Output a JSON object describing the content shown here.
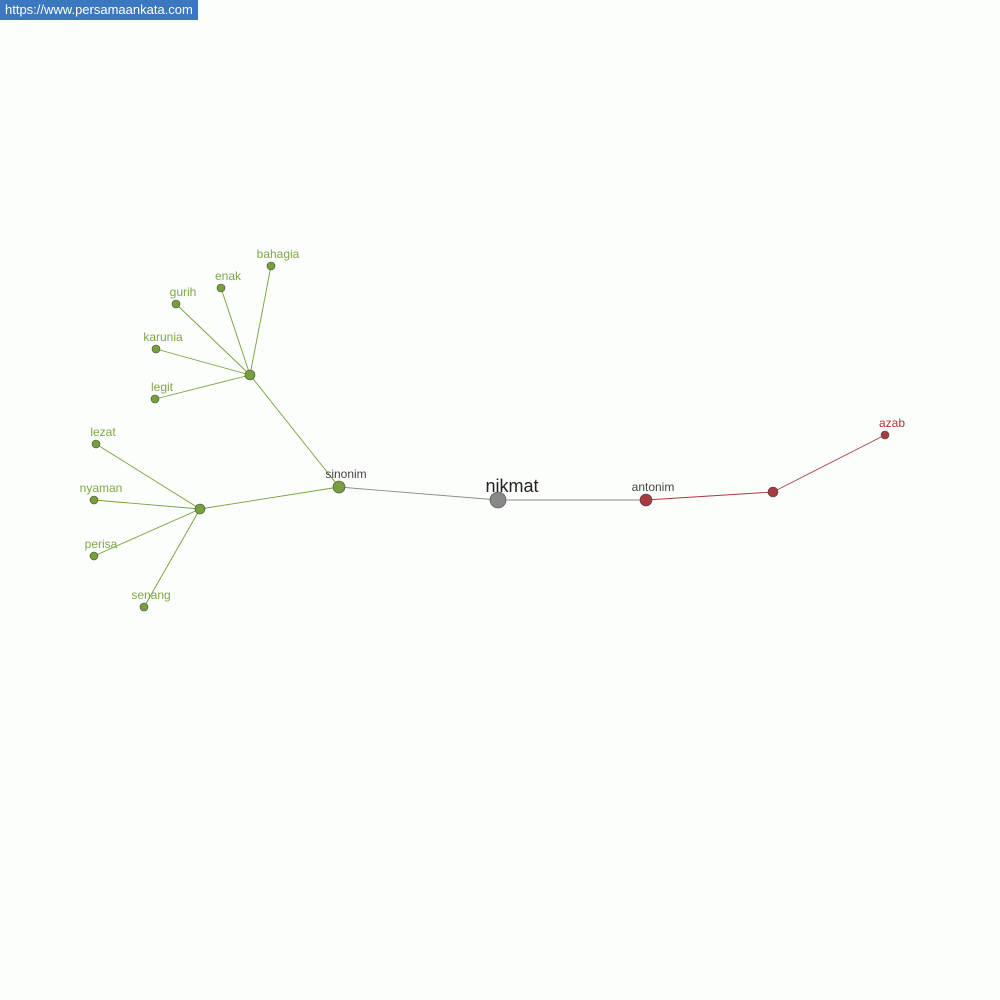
{
  "site_link": "https://www.persamaankata.com",
  "colors": {
    "synonym": "#76a03a",
    "synonym_label": "#7fa546",
    "antonym": "#a53a40",
    "antonym_label": "#b5343c",
    "center": "#888888",
    "hub_label": "#444444",
    "center_label": "#222222",
    "center_edge": "#888888"
  },
  "nodes": [
    {
      "id": "nikmat",
      "label": "nikmat",
      "group": "center"
    },
    {
      "id": "sinonim",
      "label": "sinonim",
      "group": "syn-hub"
    },
    {
      "id": "antonim",
      "label": "antonim",
      "group": "ant-hub"
    },
    {
      "id": "s1",
      "label": "",
      "group": "syn-sub"
    },
    {
      "id": "s2",
      "label": "",
      "group": "syn-sub"
    },
    {
      "id": "a1",
      "label": "",
      "group": "ant-sub"
    },
    {
      "id": "bahagia",
      "label": "bahagia",
      "group": "syn"
    },
    {
      "id": "enak",
      "label": "enak",
      "group": "syn"
    },
    {
      "id": "gurih",
      "label": "gurih",
      "group": "syn"
    },
    {
      "id": "karunia",
      "label": "karunia",
      "group": "syn"
    },
    {
      "id": "legit",
      "label": "legit",
      "group": "syn"
    },
    {
      "id": "lezat",
      "label": "lezat",
      "group": "syn"
    },
    {
      "id": "nyaman",
      "label": "nyaman",
      "group": "syn"
    },
    {
      "id": "perisa",
      "label": "perisa",
      "group": "syn"
    },
    {
      "id": "senang",
      "label": "senang",
      "group": "syn"
    },
    {
      "id": "azab",
      "label": "azab",
      "group": "ant"
    }
  ],
  "edges": [
    [
      "nikmat",
      "sinonim"
    ],
    [
      "nikmat",
      "antonim"
    ],
    [
      "sinonim",
      "s1"
    ],
    [
      "sinonim",
      "s2"
    ],
    [
      "s1",
      "bahagia"
    ],
    [
      "s1",
      "enak"
    ],
    [
      "s1",
      "gurih"
    ],
    [
      "s1",
      "karunia"
    ],
    [
      "s1",
      "legit"
    ],
    [
      "s2",
      "lezat"
    ],
    [
      "s2",
      "nyaman"
    ],
    [
      "s2",
      "perisa"
    ],
    [
      "s2",
      "senang"
    ],
    [
      "antonim",
      "a1"
    ],
    [
      "a1",
      "azab"
    ]
  ]
}
